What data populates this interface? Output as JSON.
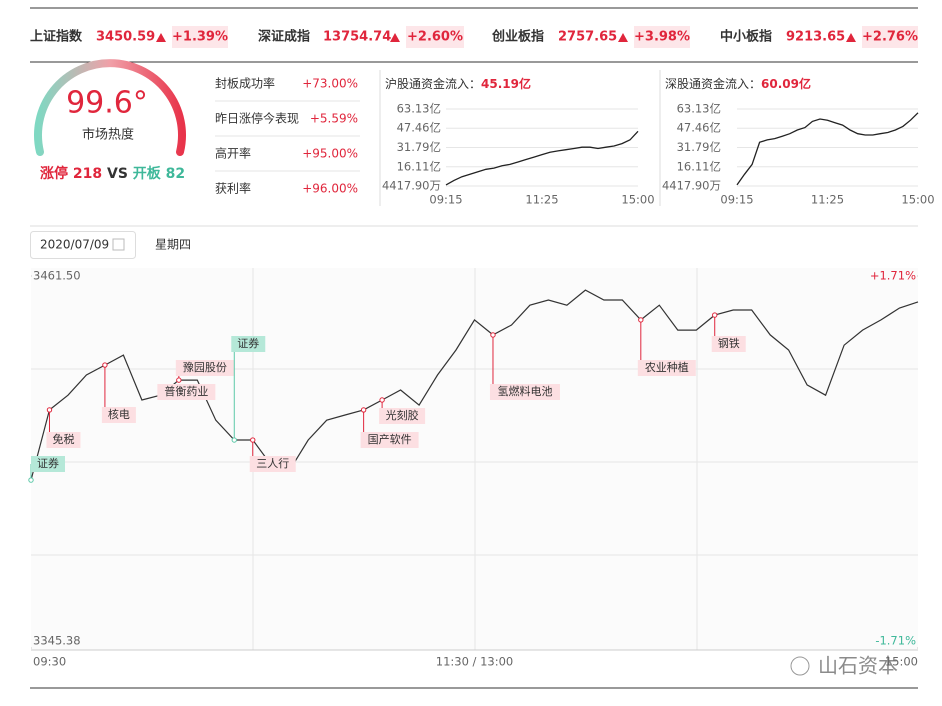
{
  "indices": [
    {
      "name": "上证指数",
      "value": "3450.59",
      "change": "+1.39%"
    },
    {
      "name": "深证成指",
      "value": "13754.74",
      "change": "+2.60%"
    },
    {
      "name": "创业板指",
      "value": "2757.65",
      "change": "+3.98%"
    },
    {
      "name": "中小板指",
      "value": "9213.65",
      "change": "+2.76%"
    }
  ],
  "heat": {
    "value": "99.6°",
    "label": "市场热度",
    "up_label": "涨停",
    "up_count": "218",
    "vs": "VS",
    "open_label": "开板",
    "open_count": "82"
  },
  "stats": [
    {
      "label": "封板成功率",
      "value": "+73.00%"
    },
    {
      "label": "昨日涨停今表现",
      "value": "+5.59%"
    },
    {
      "label": "高开率",
      "value": "+95.00%"
    },
    {
      "label": "获利率",
      "value": "+96.00%"
    }
  ],
  "date": "2020/07/09",
  "weekday": "星期四",
  "watermark": "山石资本",
  "chart_data": [
    {
      "type": "line",
      "title": "沪股通资金流入：",
      "total": "45.19亿",
      "color": "#222",
      "grid": true,
      "categories": [
        "09:15",
        null,
        null,
        null,
        null,
        null,
        null,
        null,
        null,
        null,
        null,
        null,
        "11:25",
        null,
        null,
        null,
        null,
        null,
        null,
        null,
        null,
        null,
        null,
        null,
        "15:00"
      ],
      "values": [
        1.3,
        5,
        8,
        10,
        12,
        14,
        15,
        17,
        18,
        20,
        22,
        24,
        26,
        28,
        29,
        30,
        31,
        32,
        32,
        31,
        32,
        33,
        35,
        38,
        45
      ],
      "ylim": [
        0.44179,
        63.13
      ],
      "yticks": [
        {
          "value": 63.13,
          "label": "63.13亿"
        },
        {
          "value": 47.46,
          "label": "47.46亿"
        },
        {
          "value": 31.79,
          "label": "31.79亿"
        },
        {
          "value": 16.11,
          "label": "16.11亿"
        },
        {
          "value": 0.44179,
          "label": "4417.90万"
        }
      ]
    },
    {
      "type": "line",
      "title": "深股通资金流入：",
      "total": "60.09亿",
      "color": "#222",
      "grid": true,
      "categories": [
        "09:15",
        null,
        null,
        null,
        null,
        null,
        null,
        null,
        null,
        null,
        null,
        null,
        "11:25",
        null,
        null,
        null,
        null,
        null,
        null,
        null,
        null,
        null,
        null,
        null,
        "15:00"
      ],
      "values": [
        1.3,
        10,
        18,
        36,
        38,
        39,
        41,
        43,
        46,
        48,
        53,
        55,
        54,
        52,
        50,
        46,
        43,
        42,
        42,
        43,
        44,
        46,
        49,
        54,
        60
      ],
      "ylim": [
        0.44179,
        63.13
      ],
      "yticks": [
        {
          "value": 63.13,
          "label": "63.13亿"
        },
        {
          "value": 47.46,
          "label": "47.46亿"
        },
        {
          "value": 31.79,
          "label": "31.79亿"
        },
        {
          "value": 16.11,
          "label": "16.11亿"
        },
        {
          "value": 0.44179,
          "label": "4417.90万"
        }
      ]
    },
    {
      "type": "line",
      "color": "#333",
      "categories": [
        "09:30",
        null,
        null,
        null,
        null,
        null,
        null,
        null,
        null,
        null,
        null,
        null,
        null,
        null,
        null,
        null,
        null,
        null,
        null,
        null,
        null,
        null,
        null,
        null,
        "11:30 / 13:00",
        null,
        null,
        null,
        null,
        null,
        null,
        null,
        null,
        null,
        null,
        null,
        null,
        null,
        null,
        null,
        null,
        null,
        null,
        null,
        null,
        null,
        null,
        null,
        "15:00"
      ],
      "values": [
        3397.8,
        3419.7,
        3424.3,
        3430.6,
        3433.7,
        3436.8,
        3422.8,
        3424.3,
        3429.0,
        3429.0,
        3416.5,
        3410.3,
        3410.3,
        3402.5,
        3400.9,
        3410.3,
        3416.5,
        3418.1,
        3419.7,
        3422.8,
        3425.9,
        3421.2,
        3430.6,
        3438.4,
        3447.8,
        3443.1,
        3446.2,
        3452.4,
        3454.0,
        3452.4,
        3457.1,
        3454.0,
        3454.0,
        3447.8,
        3452.4,
        3444.6,
        3444.6,
        3449.3,
        3450.9,
        3450.9,
        3443.1,
        3438.4,
        3427.5,
        3424.3,
        3439.9,
        3444.6,
        3447.8,
        3451.5,
        3453.4
      ],
      "ylim": [
        3345.38,
        3461.5
      ],
      "yticks": [
        {
          "value": 3461.5,
          "label": "3461.50"
        },
        {
          "value": 3345.38,
          "label": "3345.38"
        }
      ],
      "y2lim": [
        -1.71,
        1.71
      ],
      "y2ticks": [
        {
          "value": 1.71,
          "label": "+1.71%"
        },
        {
          "value": -1.71,
          "label": "-1.71%"
        }
      ],
      "annotations": [
        {
          "text": "证券",
          "color": "#b5e8d8"
        },
        {
          "text": "免税",
          "color": "#fcdfe2"
        },
        {
          "text": "核电",
          "color": "#fcdfe2"
        },
        {
          "text": "普衡药业",
          "color": "#fcdfe2"
        },
        {
          "text": "豫园股份",
          "color": "#fcdfe2"
        },
        {
          "text": "证券",
          "color": "#b5e8d8"
        },
        {
          "text": "三人行",
          "color": "#fcdfe2"
        },
        {
          "text": "国产软件",
          "color": "#fcdfe2"
        },
        {
          "text": "光刻胶",
          "color": "#fcdfe2"
        },
        {
          "text": "氢燃料电池",
          "color": "#fcdfe2"
        },
        {
          "text": "农业种植",
          "color": "#fcdfe2"
        },
        {
          "text": "钢铁",
          "color": "#fcdfe2"
        }
      ]
    }
  ]
}
